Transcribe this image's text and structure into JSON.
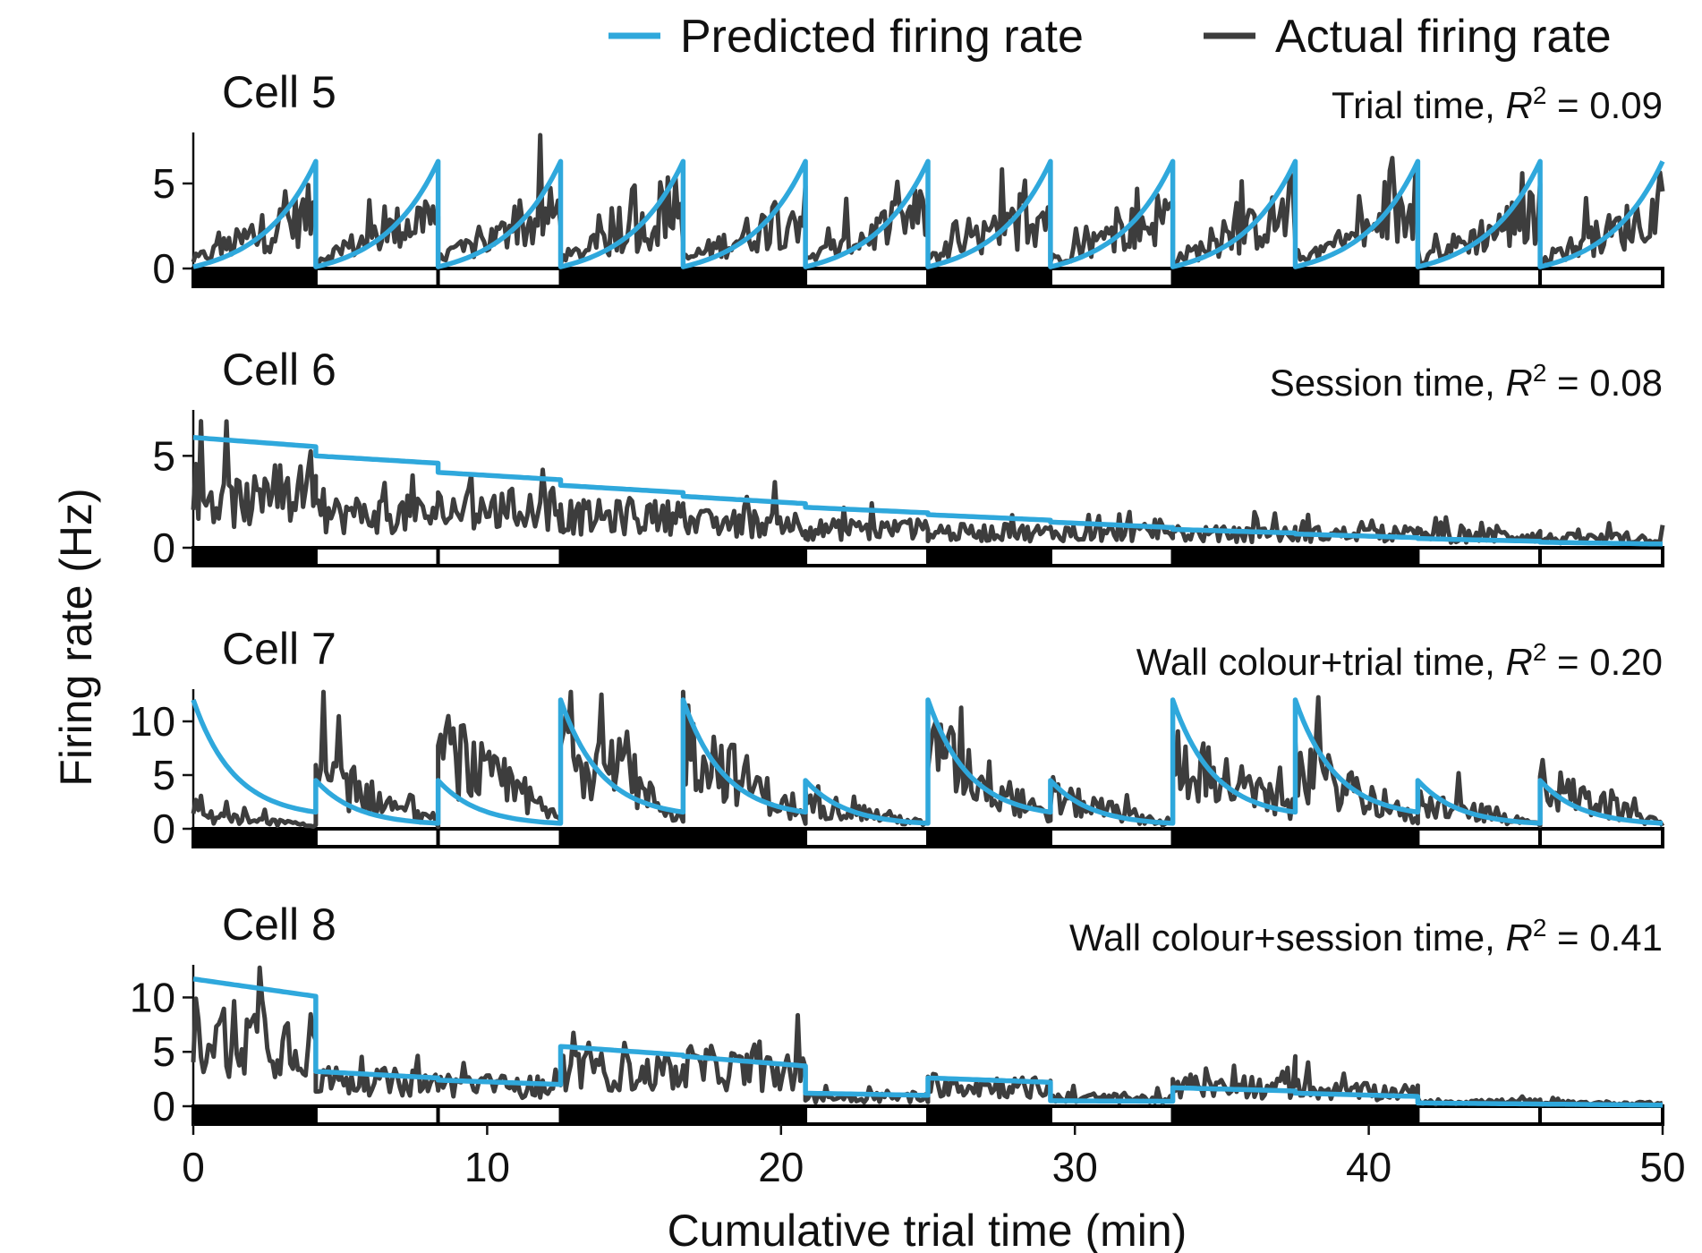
{
  "legend": {
    "predicted_label": "Predicted firing rate",
    "actual_label": "Actual firing rate"
  },
  "colors": {
    "predicted": "#2fa8dc",
    "actual": "#3d3d3d",
    "block_dark": "#000000",
    "block_light": "#ffffff"
  },
  "chart_data": {
    "type": "line",
    "xlabel": "Cumulative trial time (min)",
    "ylabel": "Firing rate (Hz)",
    "xlim": [
      0,
      50
    ],
    "x_ticks": [
      0,
      10,
      20,
      30,
      40,
      50
    ],
    "trial_boundaries_min": [
      0,
      4.17,
      8.33,
      12.5,
      16.67,
      20.83,
      25,
      29.17,
      33.33,
      37.5,
      41.67,
      45.83,
      50
    ],
    "trial_wall_colour": [
      "dark",
      "light",
      "light",
      "dark",
      "dark",
      "light",
      "dark",
      "light",
      "dark",
      "dark",
      "light",
      "light"
    ],
    "panels": [
      {
        "title": "Cell 5",
        "model": "Trial time",
        "r2": "0.09",
        "ylim": [
          0,
          8
        ],
        "y_ticks": [
          0,
          5
        ],
        "predicted_per_trial": [
          {
            "start": 0.1,
            "end": 6.3,
            "shape": "exp_up"
          },
          {
            "start": 0.1,
            "end": 6.3,
            "shape": "exp_up"
          },
          {
            "start": 0.1,
            "end": 6.3,
            "shape": "exp_up"
          },
          {
            "start": 0.1,
            "end": 6.3,
            "shape": "exp_up"
          },
          {
            "start": 0.1,
            "end": 6.3,
            "shape": "exp_up"
          },
          {
            "start": 0.1,
            "end": 6.3,
            "shape": "exp_up"
          },
          {
            "start": 0.1,
            "end": 6.3,
            "shape": "exp_up"
          },
          {
            "start": 0.1,
            "end": 6.3,
            "shape": "exp_up"
          },
          {
            "start": 0.1,
            "end": 6.3,
            "shape": "exp_up"
          },
          {
            "start": 0.1,
            "end": 6.3,
            "shape": "exp_up"
          },
          {
            "start": 0.1,
            "end": 6.3,
            "shape": "exp_up"
          },
          {
            "start": 0.1,
            "end": 6.3,
            "shape": "exp_up"
          }
        ],
        "actual_mean_per_trial": [
          {
            "start": 0.6,
            "end": 4.0
          },
          {
            "start": 0.6,
            "end": 4.0
          },
          {
            "start": 0.6,
            "end": 4.0
          },
          {
            "start": 0.6,
            "end": 4.0
          },
          {
            "start": 0.6,
            "end": 4.0
          },
          {
            "start": 0.6,
            "end": 4.0
          },
          {
            "start": 0.6,
            "end": 4.0
          },
          {
            "start": 0.6,
            "end": 4.0
          },
          {
            "start": 0.6,
            "end": 4.0
          },
          {
            "start": 0.6,
            "end": 4.0
          },
          {
            "start": 0.6,
            "end": 4.0
          },
          {
            "start": 0.6,
            "end": 4.0
          }
        ]
      },
      {
        "title": "Cell 6",
        "model": "Session time",
        "r2": "0.08",
        "ylim": [
          0,
          7.5
        ],
        "y_ticks": [
          0,
          5
        ],
        "predicted_per_trial": [
          {
            "start": 6.0,
            "end": 5.5,
            "shape": "linear"
          },
          {
            "start": 5.0,
            "end": 4.6,
            "shape": "linear"
          },
          {
            "start": 4.1,
            "end": 3.7,
            "shape": "linear"
          },
          {
            "start": 3.4,
            "end": 3.0,
            "shape": "linear"
          },
          {
            "start": 2.8,
            "end": 2.4,
            "shape": "linear"
          },
          {
            "start": 2.2,
            "end": 1.9,
            "shape": "linear"
          },
          {
            "start": 1.8,
            "end": 1.5,
            "shape": "linear"
          },
          {
            "start": 1.4,
            "end": 1.1,
            "shape": "linear"
          },
          {
            "start": 1.0,
            "end": 0.8,
            "shape": "linear"
          },
          {
            "start": 0.75,
            "end": 0.55,
            "shape": "linear"
          },
          {
            "start": 0.5,
            "end": 0.35,
            "shape": "linear"
          },
          {
            "start": 0.3,
            "end": 0.2,
            "shape": "linear"
          }
        ],
        "actual_mean_per_trial": [
          {
            "start": 3.0,
            "end": 3.0
          },
          {
            "start": 2.2,
            "end": 2.2
          },
          {
            "start": 2.5,
            "end": 2.5
          },
          {
            "start": 2.0,
            "end": 2.0
          },
          {
            "start": 1.6,
            "end": 1.6
          },
          {
            "start": 1.2,
            "end": 1.2
          },
          {
            "start": 1.0,
            "end": 1.0
          },
          {
            "start": 1.0,
            "end": 1.0
          },
          {
            "start": 0.9,
            "end": 0.9
          },
          {
            "start": 0.9,
            "end": 0.9
          },
          {
            "start": 0.8,
            "end": 0.8
          },
          {
            "start": 0.6,
            "end": 0.6
          }
        ]
      },
      {
        "title": "Cell 7",
        "model": "Wall colour+trial time",
        "r2": "0.20",
        "ylim": [
          0,
          13
        ],
        "y_ticks": [
          0,
          5,
          10
        ],
        "predicted_per_trial": [
          {
            "start": 12.0,
            "end": 1.0,
            "shape": "exp_down"
          },
          {
            "start": 4.5,
            "end": 0.3,
            "shape": "exp_down"
          },
          {
            "start": 4.5,
            "end": 0.3,
            "shape": "exp_down"
          },
          {
            "start": 12.0,
            "end": 1.0,
            "shape": "exp_down"
          },
          {
            "start": 12.0,
            "end": 1.0,
            "shape": "exp_down"
          },
          {
            "start": 4.5,
            "end": 0.3,
            "shape": "exp_down"
          },
          {
            "start": 12.0,
            "end": 1.0,
            "shape": "exp_down"
          },
          {
            "start": 4.5,
            "end": 0.3,
            "shape": "exp_down"
          },
          {
            "start": 12.0,
            "end": 1.0,
            "shape": "exp_down"
          },
          {
            "start": 12.0,
            "end": 1.0,
            "shape": "exp_down"
          },
          {
            "start": 4.5,
            "end": 0.3,
            "shape": "exp_down"
          },
          {
            "start": 4.5,
            "end": 0.3,
            "shape": "exp_down"
          }
        ],
        "actual_mean_per_trial": [
          {
            "start": 1.5,
            "end": 0.3
          },
          {
            "start": 6.0,
            "end": 0.5
          },
          {
            "start": 9.0,
            "end": 1.0
          },
          {
            "start": 10.0,
            "end": 1.0
          },
          {
            "start": 10.0,
            "end": 1.0
          },
          {
            "start": 3.0,
            "end": 0.5
          },
          {
            "start": 9.0,
            "end": 1.0
          },
          {
            "start": 3.5,
            "end": 0.5
          },
          {
            "start": 8.0,
            "end": 2.0
          },
          {
            "start": 7.0,
            "end": 1.0
          },
          {
            "start": 3.0,
            "end": 0.5
          },
          {
            "start": 5.0,
            "end": 0.5
          }
        ]
      },
      {
        "title": "Cell 8",
        "model": "Wall colour+session time",
        "r2": "0.41",
        "ylim": [
          0,
          13
        ],
        "y_ticks": [
          0,
          5,
          10
        ],
        "predicted_per_trial": [
          {
            "start": 11.7,
            "end": 10.1,
            "shape": "linear"
          },
          {
            "start": 3.2,
            "end": 2.6,
            "shape": "linear"
          },
          {
            "start": 2.4,
            "end": 2.0,
            "shape": "linear"
          },
          {
            "start": 5.5,
            "end": 4.7,
            "shape": "linear"
          },
          {
            "start": 4.6,
            "end": 3.7,
            "shape": "linear"
          },
          {
            "start": 1.2,
            "end": 1.0,
            "shape": "linear"
          },
          {
            "start": 2.6,
            "end": 2.2,
            "shape": "linear"
          },
          {
            "start": 0.5,
            "end": 0.45,
            "shape": "linear"
          },
          {
            "start": 1.7,
            "end": 1.4,
            "shape": "linear"
          },
          {
            "start": 1.2,
            "end": 0.9,
            "shape": "linear"
          },
          {
            "start": 0.3,
            "end": 0.2,
            "shape": "linear"
          },
          {
            "start": 0.2,
            "end": 0.1,
            "shape": "linear"
          }
        ],
        "actual_mean_per_trial": [
          {
            "start": 8.0,
            "end": 7.0
          },
          {
            "start": 3.0,
            "end": 2.5
          },
          {
            "start": 2.5,
            "end": 2.0
          },
          {
            "start": 4.0,
            "end": 3.5
          },
          {
            "start": 4.5,
            "end": 3.5
          },
          {
            "start": 1.0,
            "end": 1.0
          },
          {
            "start": 2.5,
            "end": 2.0
          },
          {
            "start": 1.0,
            "end": 0.8
          },
          {
            "start": 2.0,
            "end": 2.0
          },
          {
            "start": 1.8,
            "end": 1.5
          },
          {
            "start": 0.5,
            "end": 0.5
          },
          {
            "start": 0.4,
            "end": 0.3
          }
        ]
      }
    ]
  }
}
